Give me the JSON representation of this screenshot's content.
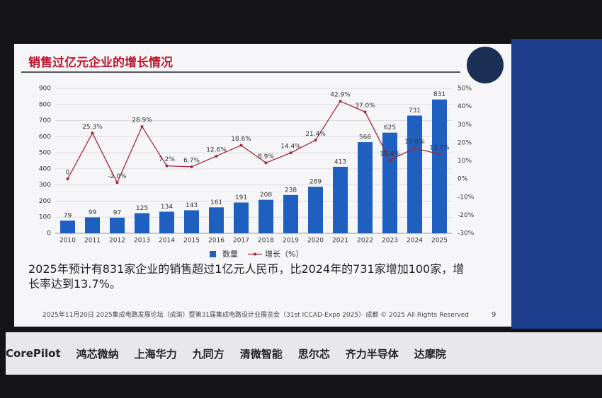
{
  "chart_data": {
    "type": "bar-line",
    "title": "销售过亿元企业的增长情况",
    "categories": [
      "2010",
      "2011",
      "2012",
      "2013",
      "2014",
      "2015",
      "2016",
      "2017",
      "2018",
      "2019",
      "2020",
      "2021",
      "2022",
      "2023",
      "2024",
      "2025"
    ],
    "series": [
      {
        "name": "数量",
        "type": "bar",
        "color": "#1f5fbf",
        "values": [
          79,
          99,
          97,
          125,
          134,
          143,
          161,
          191,
          208,
          238,
          289,
          413,
          566,
          625,
          731,
          831
        ]
      },
      {
        "name": "增长（%）",
        "type": "line",
        "axis": "y2",
        "color": "#a3283c",
        "values": [
          0,
          25.3,
          -2.0,
          28.9,
          7.2,
          6.7,
          12.6,
          18.6,
          8.9,
          14.4,
          21.4,
          42.9,
          37.0,
          10.4,
          17.0,
          13.7
        ],
        "value_labels": [
          "0",
          "25.3%",
          "-2.0%",
          "28.9%",
          "7.2%",
          "6.7%",
          "12.6%",
          "18.6%",
          "8.9%",
          "14.4%",
          "21.4%",
          "42.9%",
          "37.0%",
          "10.4%",
          "17.0%",
          "13.7%"
        ]
      }
    ],
    "ylim": [
      0,
      900
    ],
    "yticks": [
      0,
      100,
      200,
      300,
      400,
      500,
      600,
      700,
      800,
      900
    ],
    "y2lim": [
      -30,
      50
    ],
    "y2ticks": [
      {
        "value": -30,
        "label": "-30%"
      },
      {
        "value": -20,
        "label": "-20%"
      },
      {
        "value": -10,
        "label": "-10%"
      },
      {
        "value": 0,
        "label": "0%"
      },
      {
        "value": 10,
        "label": "10%"
      },
      {
        "value": 20,
        "label": "20%"
      },
      {
        "value": 30,
        "label": "30%"
      },
      {
        "value": 40,
        "label": "40%"
      },
      {
        "value": 50,
        "label": "50%"
      }
    ],
    "grid": true,
    "legend": "bottom"
  },
  "slide": {
    "summary": "2025年预计有831家企业的销售超过1亿元人民币，比2024年的731家增加100家，增长率达到13.7%。",
    "footer": "2025年11月20日  2025集成电路发展论坛（成渝）暨第31届集成电路设计业展览会（31st ICCAD-Expo 2025）· 成都 © 2025 All Rights Reserved",
    "page_number": "9"
  },
  "sponsors": [
    "CorePilot",
    "鸿芯微纳",
    "上海华力",
    "九同方",
    "清微智能",
    "思尔芯",
    "齐力半导体",
    "达摩院"
  ]
}
